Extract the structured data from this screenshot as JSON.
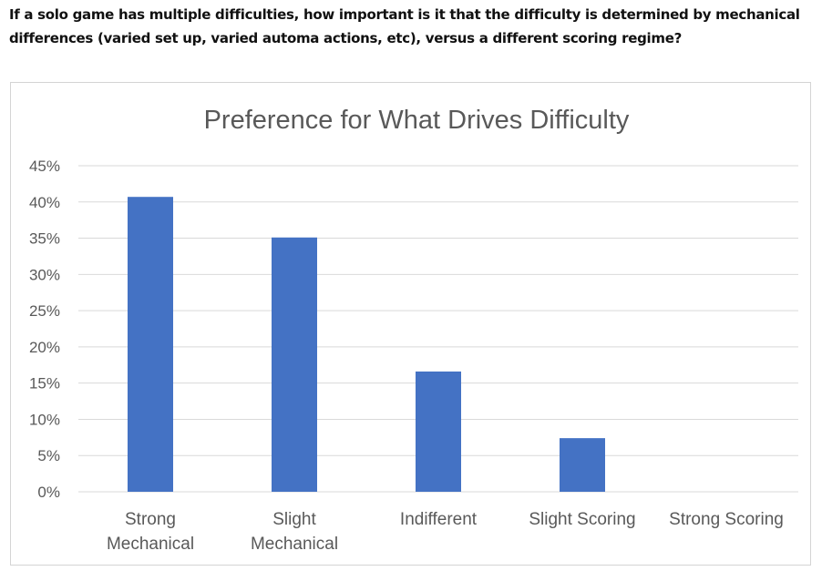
{
  "question": "If a solo game has multiple difficulties, how important is it that the difficulty is determined by mechanical differences (varied set up, varied automa actions, etc), versus a different scoring regime?",
  "chart_data": {
    "type": "bar",
    "title": "Preference for What Drives Difficulty",
    "categories": [
      [
        "Strong",
        "Mechanical"
      ],
      [
        "Slight",
        "Mechanical"
      ],
      [
        "Indifferent"
      ],
      [
        "Slight Scoring"
      ],
      [
        "Strong Scoring"
      ]
    ],
    "values": [
      40.7,
      35.1,
      16.6,
      7.4,
      0
    ],
    "ylim": [
      0,
      45
    ],
    "yticks": [
      0,
      5,
      10,
      15,
      20,
      25,
      30,
      35,
      40,
      45
    ],
    "ytick_format": "{v}%",
    "grid": true,
    "legend": "none",
    "bar_color": "#4472C4",
    "grid_color": "#d9d9d9",
    "axis_color": "#d9d9d9"
  }
}
